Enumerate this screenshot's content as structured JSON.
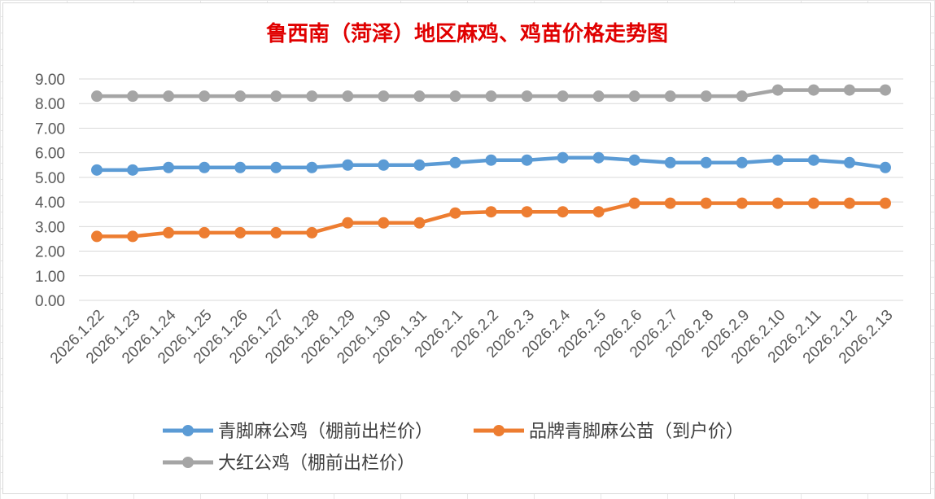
{
  "chart_data": {
    "type": "line",
    "title": "鲁西南（菏泽）地区麻鸡、鸡苗价格走势图",
    "categories": [
      "2026.1.22",
      "2026.1.23",
      "2026.1.24",
      "2026.1.25",
      "2026.1.26",
      "2026.1.27",
      "2026.1.28",
      "2026.1.29",
      "2026.1.30",
      "2026.1.31",
      "2026.2.1",
      "2026.2.2",
      "2026.2.3",
      "2026.2.4",
      "2026.2.5",
      "2026.2.6",
      "2026.2.7",
      "2026.2.8",
      "2026.2.9",
      "2026.2.10",
      "2026.2.11",
      "2026.2.12",
      "2026.2.13"
    ],
    "ylim": [
      0,
      9
    ],
    "yticks": [
      "0.00",
      "1.00",
      "2.00",
      "3.00",
      "4.00",
      "5.00",
      "6.00",
      "7.00",
      "8.00",
      "9.00"
    ],
    "grid": true,
    "legend_position": "bottom",
    "series": [
      {
        "name": "青脚麻公鸡（棚前出栏价）",
        "color": "#5b9bd5",
        "values": [
          5.3,
          5.3,
          5.4,
          5.4,
          5.4,
          5.4,
          5.4,
          5.5,
          5.5,
          5.5,
          5.6,
          5.7,
          5.7,
          5.8,
          5.8,
          5.7,
          5.6,
          5.6,
          5.6,
          5.7,
          5.7,
          5.6,
          5.4
        ]
      },
      {
        "name": "品牌青脚麻公苗（到户价）",
        "color": "#ed7d31",
        "values": [
          2.6,
          2.6,
          2.75,
          2.75,
          2.75,
          2.75,
          2.75,
          3.15,
          3.15,
          3.15,
          3.55,
          3.6,
          3.6,
          3.6,
          3.6,
          3.95,
          3.95,
          3.95,
          3.95,
          3.95,
          3.95,
          3.95,
          3.95
        ]
      },
      {
        "name": "大红公鸡（棚前出栏价）",
        "color": "#a5a5a5",
        "values": [
          8.3,
          8.3,
          8.3,
          8.3,
          8.3,
          8.3,
          8.3,
          8.3,
          8.3,
          8.3,
          8.3,
          8.3,
          8.3,
          8.3,
          8.3,
          8.3,
          8.3,
          8.3,
          8.3,
          8.55,
          8.55,
          8.55,
          8.55
        ]
      }
    ]
  }
}
